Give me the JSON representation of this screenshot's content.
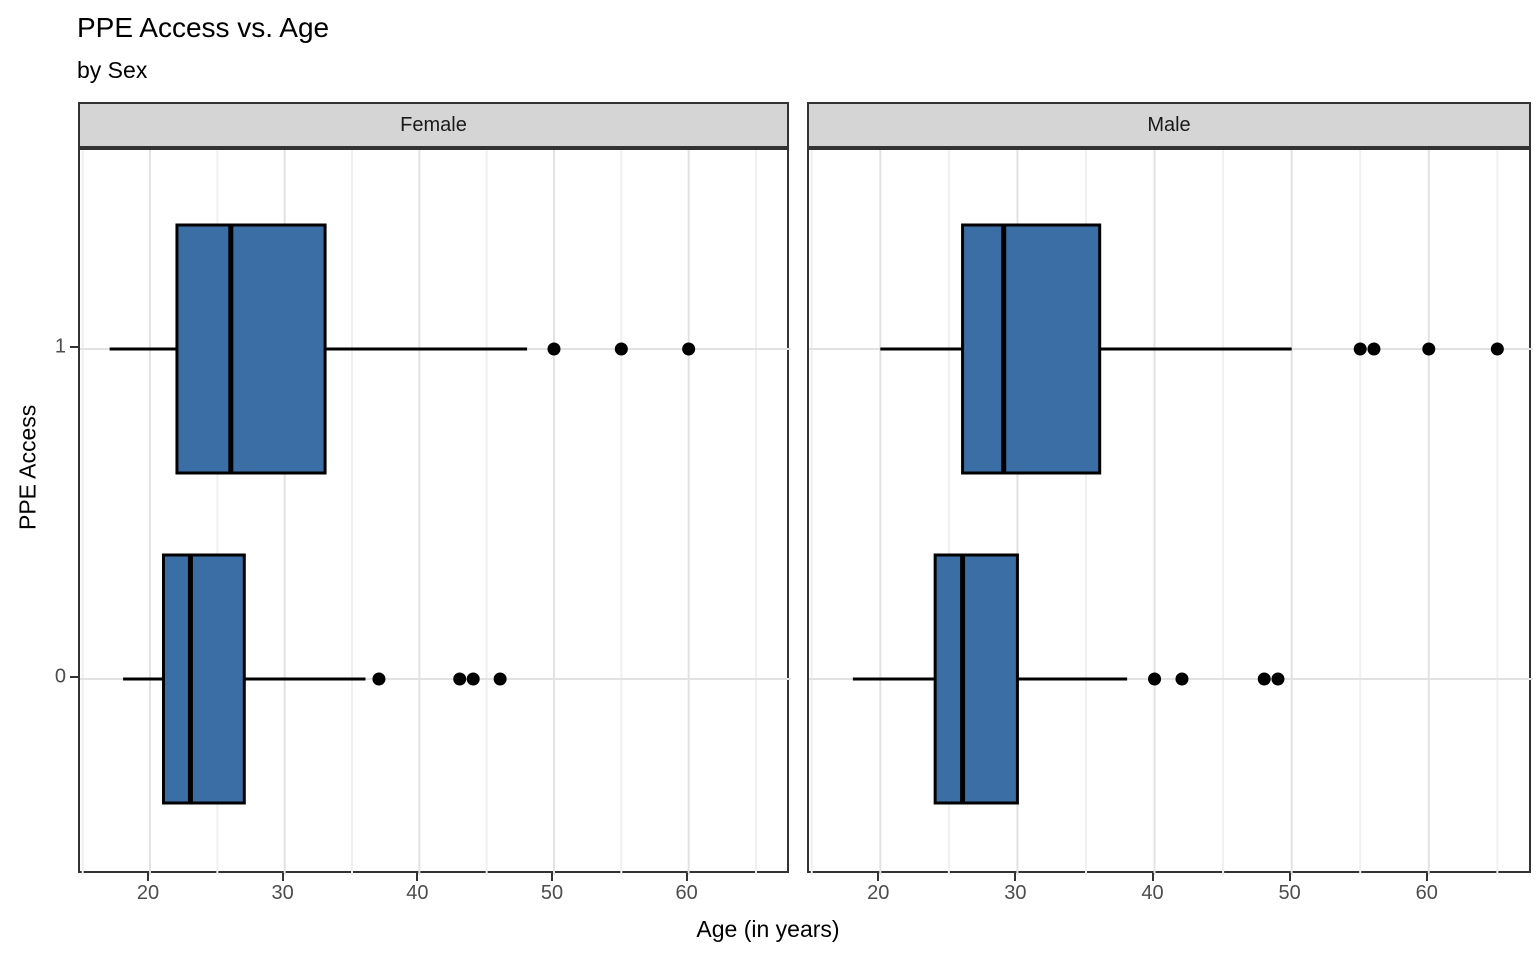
{
  "title": "PPE Access vs. Age",
  "subtitle": "by Sex",
  "axes": {
    "x_label": "Age (in years)",
    "y_label": "PPE Access",
    "x_tick_labels": [
      "20",
      "30",
      "40",
      "50",
      "60"
    ],
    "y_tick_labels": [
      "1",
      "0"
    ]
  },
  "facet_labels": [
    "Female",
    "Male"
  ],
  "colors": {
    "box_fill": "#3B6EA5",
    "box_stroke": "#000000",
    "outlier": "#000000",
    "strip_bg": "#D5D5D5",
    "panel_border": "#333333",
    "grid_major": "#E2E2E2",
    "grid_minor": "#F0F0F0",
    "tick_label": "#4D4D4D"
  },
  "chart_data": {
    "type": "boxplot",
    "orientation": "horizontal",
    "title": "PPE Access vs. Age",
    "subtitle": "by Sex",
    "xlabel": "Age (in years)",
    "ylabel": "PPE Access",
    "xlim": [
      14.8,
      67.6
    ],
    "x_ticks": [
      20,
      30,
      40,
      50,
      60
    ],
    "x_minor_gridlines": [
      15,
      25,
      35,
      45,
      55,
      65
    ],
    "y_categories": [
      "1",
      "0"
    ],
    "legend": "none",
    "facets": [
      {
        "label": "Female",
        "groups": [
          {
            "category": "1",
            "whisker_low": 17,
            "q1": 22,
            "median": 26,
            "q3": 33,
            "whisker_high": 48,
            "outliers": [
              50,
              55,
              60
            ]
          },
          {
            "category": "0",
            "whisker_low": 18,
            "q1": 21,
            "median": 23,
            "q3": 27,
            "whisker_high": 36,
            "outliers": [
              37,
              43,
              44,
              46
            ]
          }
        ]
      },
      {
        "label": "Male",
        "groups": [
          {
            "category": "1",
            "whisker_low": 20,
            "q1": 26,
            "median": 29,
            "q3": 36,
            "whisker_high": 50,
            "outliers": [
              55,
              56,
              60,
              65
            ]
          },
          {
            "category": "0",
            "whisker_low": 18,
            "q1": 24,
            "median": 26,
            "q3": 30,
            "whisker_high": 38,
            "outliers": [
              40,
              42,
              48,
              49
            ]
          }
        ]
      }
    ]
  }
}
